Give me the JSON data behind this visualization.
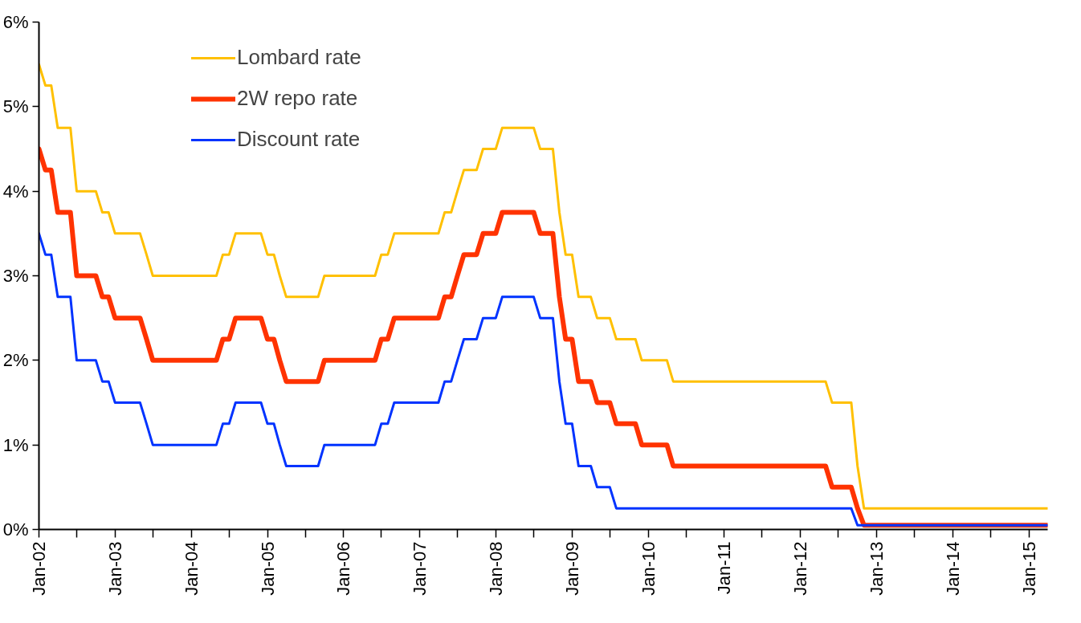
{
  "chart_data": {
    "type": "line",
    "x": [
      "2002-01",
      "2002-02",
      "2002-03",
      "2002-04",
      "2002-06",
      "2002-07",
      "2002-10",
      "2002-11",
      "2002-12",
      "2003-01",
      "2003-05",
      "2003-06",
      "2003-07",
      "2004-05",
      "2004-06",
      "2004-07",
      "2004-08",
      "2004-12",
      "2005-01",
      "2005-02",
      "2005-03",
      "2005-04",
      "2005-09",
      "2005-10",
      "2006-06",
      "2006-07",
      "2006-08",
      "2006-09",
      "2007-04",
      "2007-05",
      "2007-06",
      "2007-07",
      "2007-08",
      "2007-10",
      "2007-11",
      "2008-01",
      "2008-02",
      "2008-07",
      "2008-08",
      "2008-10",
      "2008-11",
      "2008-12",
      "2009-01",
      "2009-02",
      "2009-04",
      "2009-05",
      "2009-07",
      "2009-08",
      "2009-11",
      "2009-12",
      "2010-04",
      "2010-05",
      "2012-05",
      "2012-06",
      "2012-09",
      "2012-10",
      "2012-11",
      "2015-04"
    ],
    "series": [
      {
        "name": "Lombard rate",
        "color": "#ffc000",
        "values": [
          5.5,
          5.25,
          5.25,
          4.75,
          4.75,
          4.0,
          4.0,
          3.75,
          3.75,
          3.5,
          3.5,
          3.25,
          3.0,
          3.0,
          3.25,
          3.25,
          3.5,
          3.5,
          3.25,
          3.25,
          3.0,
          2.75,
          2.75,
          3.0,
          3.0,
          3.25,
          3.25,
          3.5,
          3.5,
          3.75,
          3.75,
          4.0,
          4.25,
          4.25,
          4.5,
          4.5,
          4.75,
          4.75,
          4.5,
          4.5,
          3.75,
          3.25,
          3.25,
          2.75,
          2.75,
          2.5,
          2.5,
          2.25,
          2.25,
          2.0,
          2.0,
          1.75,
          1.75,
          1.5,
          1.5,
          0.75,
          0.25,
          0.25
        ]
      },
      {
        "name": "2W repo rate",
        "color": "#ff3300",
        "values": [
          4.5,
          4.25,
          4.25,
          3.75,
          3.75,
          3.0,
          3.0,
          2.75,
          2.75,
          2.5,
          2.5,
          2.25,
          2.0,
          2.0,
          2.25,
          2.25,
          2.5,
          2.5,
          2.25,
          2.25,
          2.0,
          1.75,
          1.75,
          2.0,
          2.0,
          2.25,
          2.25,
          2.5,
          2.5,
          2.75,
          2.75,
          3.0,
          3.25,
          3.25,
          3.5,
          3.5,
          3.75,
          3.75,
          3.5,
          3.5,
          2.75,
          2.25,
          2.25,
          1.75,
          1.75,
          1.5,
          1.5,
          1.25,
          1.25,
          1.0,
          1.0,
          0.75,
          0.75,
          0.5,
          0.5,
          0.25,
          0.05,
          0.05
        ]
      },
      {
        "name": "Discount rate",
        "color": "#0033ff",
        "values": [
          3.5,
          3.25,
          3.25,
          2.75,
          2.75,
          2.0,
          2.0,
          1.75,
          1.75,
          1.5,
          1.5,
          1.25,
          1.0,
          1.0,
          1.25,
          1.25,
          1.5,
          1.5,
          1.25,
          1.25,
          1.0,
          0.75,
          0.75,
          1.0,
          1.0,
          1.25,
          1.25,
          1.5,
          1.5,
          1.75,
          1.75,
          2.0,
          2.25,
          2.25,
          2.5,
          2.5,
          2.75,
          2.75,
          2.5,
          2.5,
          1.75,
          1.25,
          1.25,
          0.75,
          0.75,
          0.5,
          0.5,
          0.25,
          0.25,
          0.25,
          0.25,
          0.25,
          0.25,
          0.25,
          0.25,
          0.05,
          0.05,
          0.05
        ]
      }
    ],
    "xlim": [
      "2002-01",
      "2015-04"
    ],
    "xticks": [
      {
        "value": "2002-01",
        "label": "Jan-02"
      },
      {
        "value": "2002-07",
        "label": null
      },
      {
        "value": "2003-01",
        "label": "Jan-03"
      },
      {
        "value": "2003-07",
        "label": null
      },
      {
        "value": "2004-01",
        "label": "Jan-04"
      },
      {
        "value": "2004-07",
        "label": null
      },
      {
        "value": "2005-01",
        "label": "Jan-05"
      },
      {
        "value": "2005-07",
        "label": null
      },
      {
        "value": "2006-01",
        "label": "Jan-06"
      },
      {
        "value": "2006-07",
        "label": null
      },
      {
        "value": "2007-01",
        "label": "Jan-07"
      },
      {
        "value": "2007-07",
        "label": null
      },
      {
        "value": "2008-01",
        "label": "Jan-08"
      },
      {
        "value": "2008-07",
        "label": null
      },
      {
        "value": "2009-01",
        "label": "Jan-09"
      },
      {
        "value": "2009-07",
        "label": null
      },
      {
        "value": "2010-01",
        "label": "Jan-10"
      },
      {
        "value": "2010-07",
        "label": null
      },
      {
        "value": "2011-01",
        "label": "Jan-11"
      },
      {
        "value": "2011-07",
        "label": null
      },
      {
        "value": "2012-01",
        "label": "Jan-12"
      },
      {
        "value": "2012-07",
        "label": null
      },
      {
        "value": "2013-01",
        "label": "Jan-13"
      },
      {
        "value": "2013-07",
        "label": null
      },
      {
        "value": "2014-01",
        "label": "Jan-14"
      },
      {
        "value": "2014-07",
        "label": null
      },
      {
        "value": "2015-01",
        "label": "Jan-15"
      }
    ],
    "ylim": [
      0,
      6
    ],
    "yticks": [
      {
        "value": 0,
        "label": "0%"
      },
      {
        "value": 1,
        "label": "1%"
      },
      {
        "value": 2,
        "label": "2%"
      },
      {
        "value": 3,
        "label": "3%"
      },
      {
        "value": 4,
        "label": "4%"
      },
      {
        "value": 5,
        "label": "5%"
      },
      {
        "value": 6,
        "label": "6%"
      }
    ],
    "grid": false,
    "legend": "top left",
    "marker": "none",
    "line_style": "solid"
  }
}
